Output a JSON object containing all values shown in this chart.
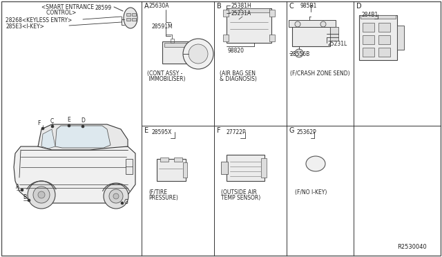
{
  "bg_color": "#ffffff",
  "line_color": "#333333",
  "title_ref": "R2530040",
  "col_A": 205,
  "col_B": 310,
  "col_C": 415,
  "col_D": 512,
  "row_mid": 190,
  "smart_label_line1": "<SMART ENTRANCE",
  "smart_label_line2": "   CONTROL>",
  "part_28599": "28599",
  "part_keyless": "28268<KEYLESS ENTRY>",
  "part_ikey": "285E3<I-KEY>",
  "part_25630A": "25630A",
  "part_28591M": "28591M",
  "part_25381H": "25381H",
  "part_25231A": "25231A",
  "part_98820": "98820",
  "part_985B1": "985B1",
  "part_28556B": "28556B",
  "part_25231L": "25231L",
  "part_284B1": "284B1",
  "part_28595X": "28595X",
  "part_27722P": "27722P",
  "part_25362P": "25362P",
  "cap_A_1": "(CONT ASSY -",
  "cap_A_2": " IMMOBILISER)",
  "cap_B_1": "(AIR BAG SEN",
  "cap_B_2": "& DIAGNOSIS)",
  "cap_C": "(F/CRASH ZONE SEND)",
  "cap_E_1": "(F/TIRE",
  "cap_E_2": "PRESSURE)",
  "cap_F_1": "(OUTSIDE AIR",
  "cap_F_2": "TEMP SENSOR)",
  "cap_G": "(F/NO I-KEY)"
}
